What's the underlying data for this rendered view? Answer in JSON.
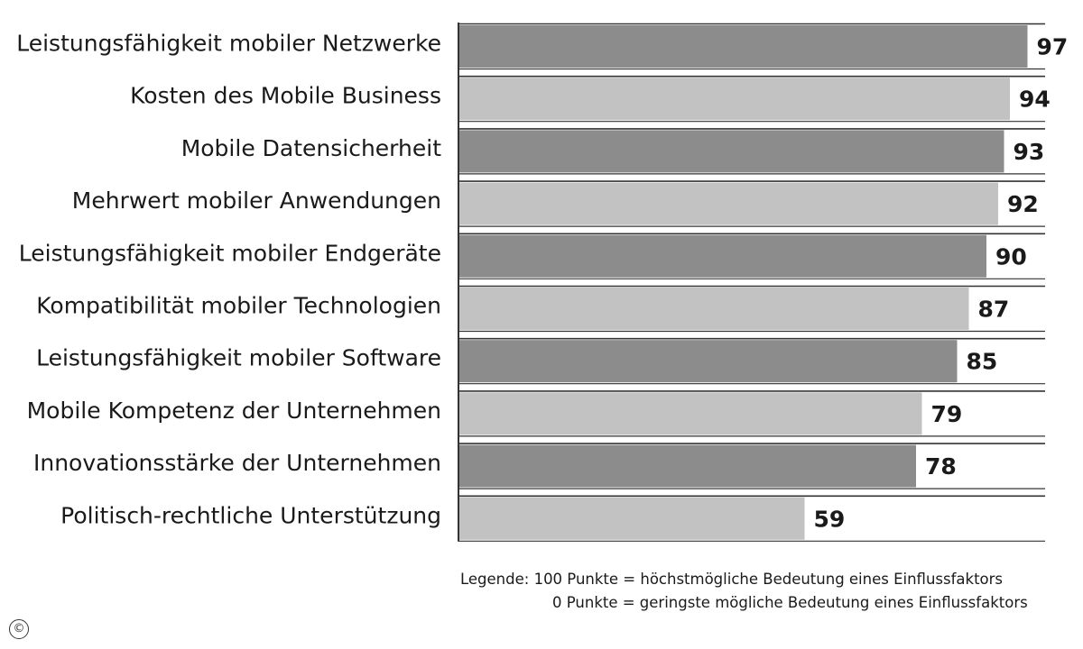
{
  "chart_data": {
    "type": "bar",
    "orientation": "horizontal",
    "categories": [
      "Leistungsfähigkeit mobiler Netzwerke",
      "Kosten des Mobile Business",
      "Mobile Datensicherheit",
      "Mehrwert mobiler Anwendungen",
      "Leistungsfähigkeit mobiler Endgeräte",
      "Kompatibilität mobiler Technologien",
      "Leistungsfähigkeit mobiler Software",
      "Mobile Kompetenz der Unternehmen",
      "Innovationsstärke der Unternehmen",
      "Politisch-rechtliche Unterstützung"
    ],
    "values": [
      97,
      94,
      93,
      92,
      90,
      87,
      85,
      79,
      78,
      59
    ],
    "value_labels": [
      "97",
      "94",
      "93",
      "92",
      "90",
      "87",
      "85",
      "79",
      "78",
      "59"
    ],
    "xlim": [
      0,
      100
    ],
    "title": "",
    "xlabel": "",
    "ylabel": "",
    "grid": false,
    "colors": {
      "dark_bar": "#8c8c8c",
      "light_bar": "#c2c2c2",
      "rule": "#333333"
    }
  },
  "legend": {
    "line1": "Legende: 100 Punkte = höchstmögliche Bedeutung eines Einflussfaktors",
    "line2": "0 Punkte = geringste mögliche Bedeutung eines Einflussfaktors"
  },
  "copyright_symbol": "©"
}
